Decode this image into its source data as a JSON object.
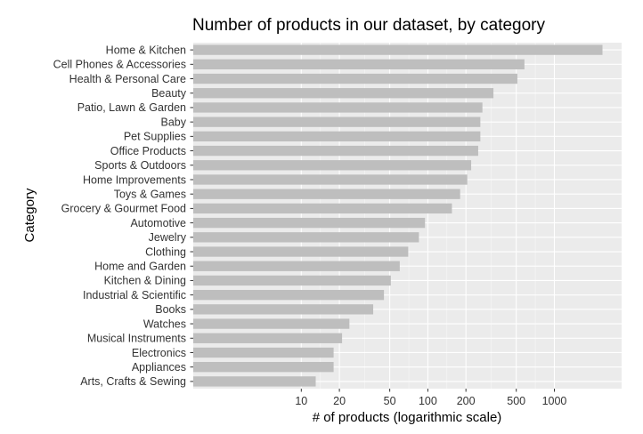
{
  "chart_data": {
    "type": "bar",
    "orientation": "horizontal",
    "title": "Number of products in our dataset, by category",
    "xlabel": "# of products (logarithmic scale)",
    "ylabel": "Category",
    "x_scale": "log10",
    "xlim": [
      1.4,
      3400
    ],
    "x_ticks": [
      10,
      20,
      50,
      100,
      200,
      500,
      1000
    ],
    "x_tick_labels": [
      "10",
      "20",
      "50",
      "100",
      "200",
      "500",
      "1000"
    ],
    "grid": true,
    "legend": "none",
    "bar_color": "#bebebe",
    "panel_color": "#ebebeb",
    "categories": [
      "Home & Kitchen",
      "Cell Phones & Accessories",
      "Health & Personal Care",
      "Beauty",
      "Patio, Lawn & Garden",
      "Baby",
      "Pet Supplies",
      "Office Products",
      "Sports & Outdoors",
      "Home Improvements",
      "Toys & Games",
      "Grocery & Gourmet Food",
      "Automotive",
      "Jewelry",
      "Clothing",
      "Home and Garden",
      "Kitchen & Dining",
      "Industrial & Scientific",
      "Books",
      "Watches",
      "Musical Instruments",
      "Electronics",
      "Appliances",
      "Arts, Crafts & Sewing"
    ],
    "values": [
      2400,
      580,
      510,
      330,
      270,
      260,
      260,
      250,
      220,
      205,
      180,
      155,
      95,
      85,
      70,
      60,
      51,
      45,
      37,
      24,
      21,
      18,
      18,
      13
    ]
  }
}
